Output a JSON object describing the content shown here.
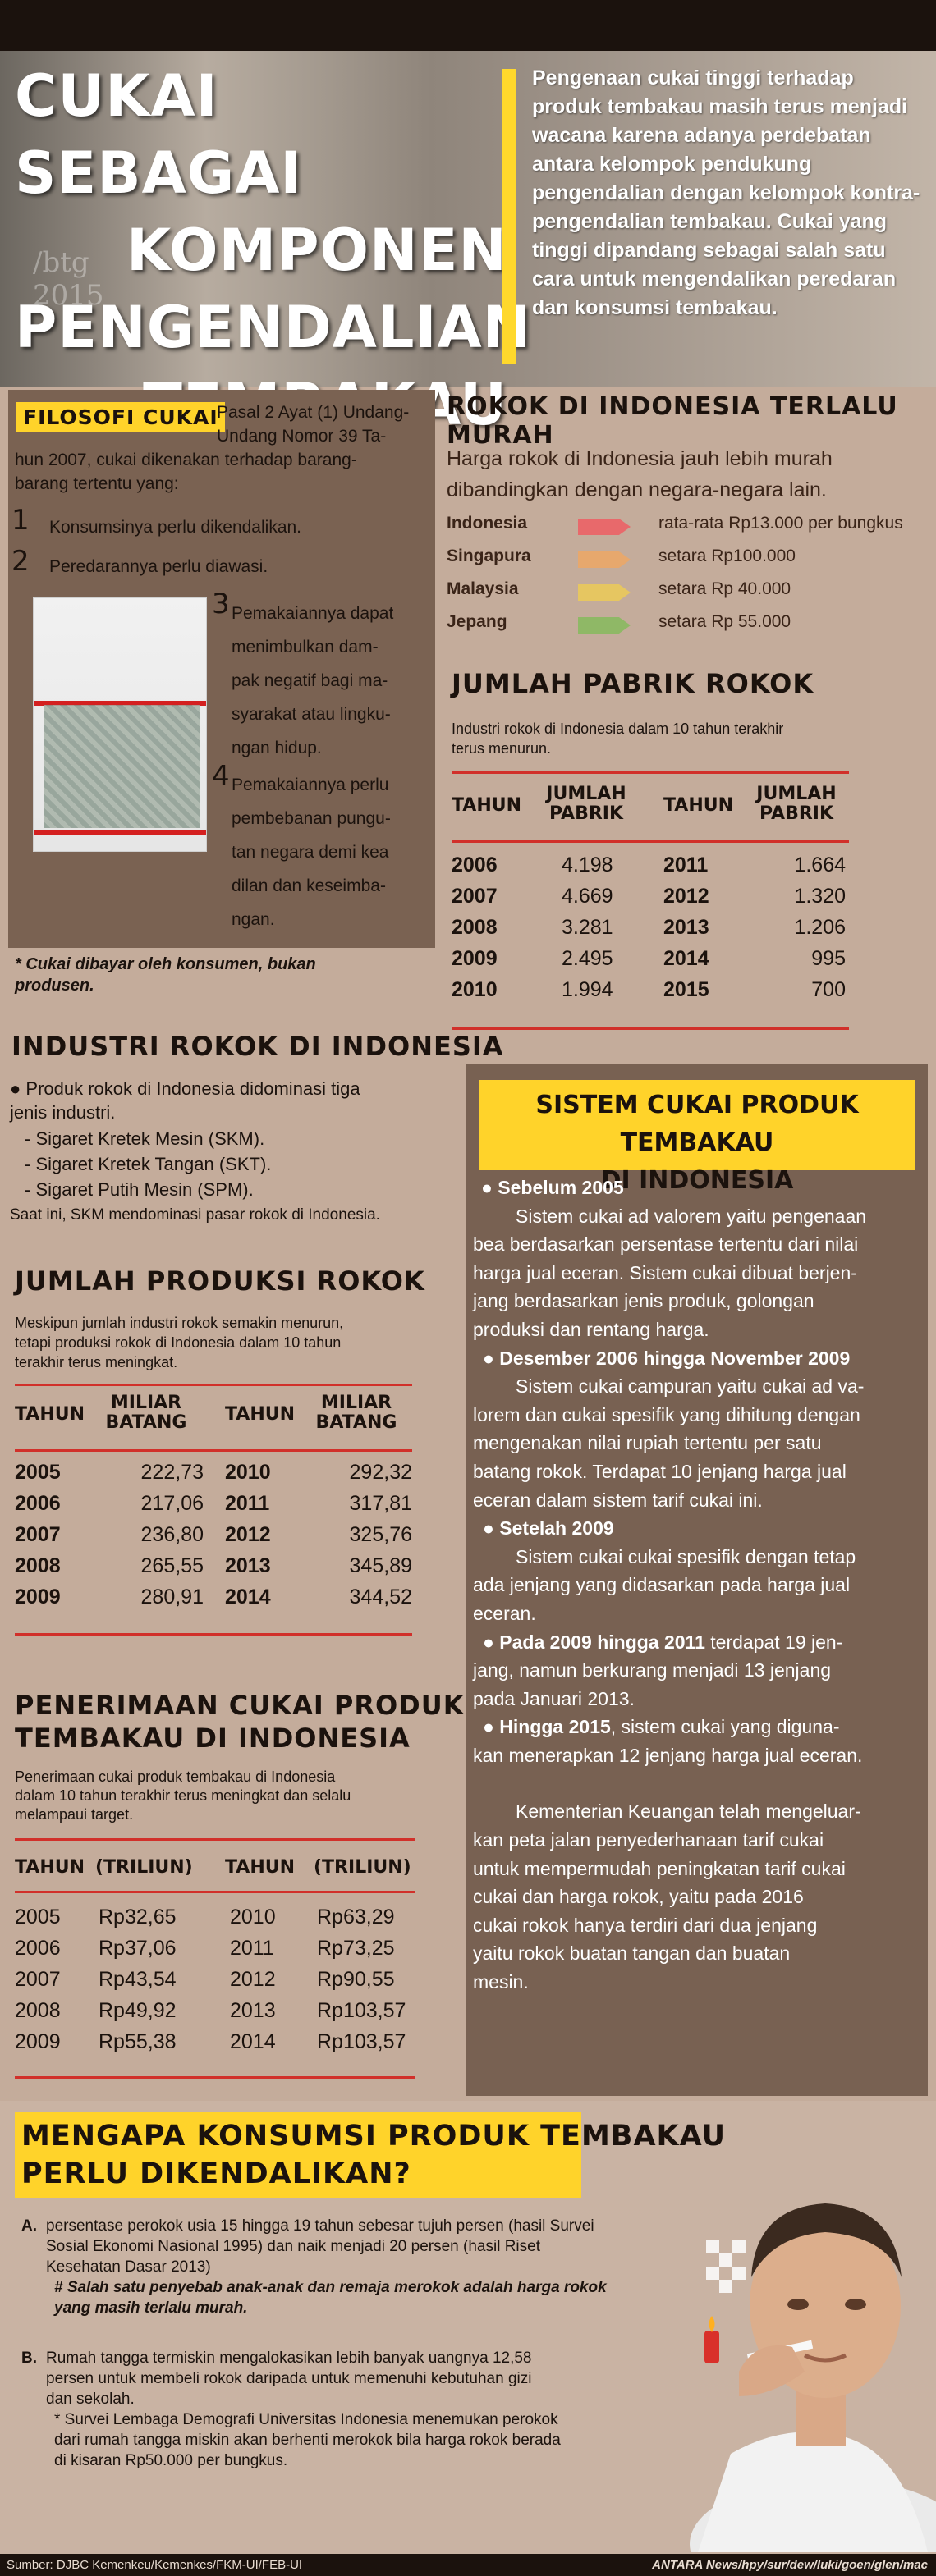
{
  "hero": {
    "title_lines": [
      "Cukai Sebagai",
      "Komponen",
      "Pengendalian",
      "Tembakau"
    ],
    "intro": "Pengenaan cukai tinggi terhadap produk tembakau masih terus menjadi wacana karena adanya perdebatan antara kelompok pendukung pengendalian dengan kelompok kontra-pengendalian tembakau. Cukai yang tinggi dipandang sebagai salah satu cara untuk mengendalikan peredaran dan konsumsi tembakau.",
    "photo_text": "/btg  2015"
  },
  "filosofi": {
    "tag": "FILOSOFI CUKAI",
    "intro_right_lines": [
      "Pasal 2 Ayat (1) Undang-",
      "Undang Nomor 39 Ta-"
    ],
    "intro_full_lines": [
      "hun 2007, cukai dikenakan terhadap barang-",
      "barang tertentu yang:"
    ],
    "items": [
      {
        "num": "1",
        "text": "Konsumsinya perlu dikendalikan."
      },
      {
        "num": "2",
        "text": "Peredarannya perlu diawasi."
      },
      {
        "num": "3",
        "lines": [
          "Pemakaiannya dapat",
          "menimbulkan dam-",
          "pak negatif bagi ma-",
          "syarakat atau lingku-",
          "ngan hidup."
        ]
      },
      {
        "num": "4",
        "lines": [
          "Pemakaiannya perlu",
          "pembebanan pungu-",
          "tan negara demi kea",
          "dilan dan keseimba-",
          "ngan."
        ]
      }
    ],
    "note_lines": [
      "*   Cukai dibayar oleh konsumen, bukan",
      "     produsen."
    ]
  },
  "rokok_murah": {
    "title": "ROKOK DI INDONESIA TERLALU MURAH",
    "desc_lines": [
      "Harga rokok di Indonesia jauh lebih murah",
      "dibandingkan dengan negara-negara lain."
    ],
    "rows": [
      {
        "country": "Indonesia",
        "color": "#e8696b",
        "text": "rata-rata Rp13.000 per bungkus"
      },
      {
        "country": "Singapura",
        "color": "#e7a86d",
        "text": "setara Rp100.000"
      },
      {
        "country": "Malaysia",
        "color": "#e6c661",
        "text": "setara Rp 40.000"
      },
      {
        "country": "Jepang",
        "color": "#8fb866",
        "text": "setara Rp 55.000"
      }
    ]
  },
  "pabrik": {
    "title": "JUMLAH PABRIK ROKOK",
    "desc_lines": [
      "Industri rokok di Indonesia dalam 10 tahun terakhir",
      "terus menurun."
    ],
    "h_tahun": "TAHUN",
    "h_val1": "JUMLAH",
    "h_val2": "PABRIK",
    "left": [
      [
        "2006",
        "4.198"
      ],
      [
        "2007",
        "4.669"
      ],
      [
        "2008",
        "3.281"
      ],
      [
        "2009",
        "2.495"
      ],
      [
        "2010",
        "1.994"
      ]
    ],
    "right": [
      [
        "2011",
        "1.664"
      ],
      [
        "2012",
        "1.320"
      ],
      [
        "2013",
        "1.206"
      ],
      [
        "2014",
        "995"
      ],
      [
        "2015",
        "700"
      ]
    ]
  },
  "industri": {
    "title": "INDUSTRI ROKOK DI INDONESIA",
    "bullet_lines": [
      "● Produk rokok di Indonesia didominasi tiga",
      "jenis industri."
    ],
    "items": [
      "- Sigaret Kretek Mesin (SKM).",
      "- Sigaret Kretek Tangan (SKT).",
      "- Sigaret Putih Mesin (SPM)."
    ],
    "note": "Saat ini, SKM mendominasi pasar rokok di Indonesia."
  },
  "produksi": {
    "title": "JUMLAH  PRODUKSI ROKOK",
    "desc_lines": [
      "Meskipun jumlah industri rokok semakin menurun,",
      "tetapi produksi rokok di Indonesia dalam 10 tahun",
      "terakhir terus meningkat."
    ],
    "h_tahun": "TAHUN",
    "h_val1": "MILIAR",
    "h_val2": "BATANG",
    "left": [
      [
        "2005",
        "222,73"
      ],
      [
        "2006",
        "217,06"
      ],
      [
        "2007",
        "236,80"
      ],
      [
        "2008",
        "265,55"
      ],
      [
        "2009",
        "280,91"
      ]
    ],
    "right": [
      [
        "2010",
        "292,32"
      ],
      [
        "2011",
        "317,81"
      ],
      [
        "2012",
        "325,76"
      ],
      [
        "2013",
        "345,89"
      ],
      [
        "2014",
        "344,52"
      ]
    ]
  },
  "penerimaan": {
    "title_lines": [
      "PENERIMAAN CUKAI PRODUK",
      "TEMBAKAU DI INDONESIA"
    ],
    "desc_lines": [
      "Penerimaan cukai produk tembakau di Indonesia",
      "dalam 10 tahun terakhir terus meningkat dan selalu",
      "melampaui target."
    ],
    "h_tahun": "TAHUN",
    "h_val": "(TRILIUN)",
    "left": [
      [
        "2005",
        "Rp32,65"
      ],
      [
        "2006",
        "Rp37,06"
      ],
      [
        "2007",
        "Rp43,54"
      ],
      [
        "2008",
        "Rp49,92"
      ],
      [
        "2009",
        "Rp55,38"
      ]
    ],
    "right": [
      [
        "2010",
        "Rp63,29"
      ],
      [
        "2011",
        "Rp73,25"
      ],
      [
        "2012",
        "Rp90,55"
      ],
      [
        "2013",
        "Rp103,57"
      ],
      [
        "2014",
        "Rp103,57"
      ]
    ]
  },
  "sistem": {
    "title_lines": [
      "SISTEM CUKAI PRODUK TEMBAKAU",
      "DI INDONESIA"
    ],
    "blocks": [
      {
        "head": "●  Sebelum 2005",
        "lines": [
          "Sistem cukai ad valorem yaitu pengenaan",
          "bea berdasarkan persentase tertentu dari nilai",
          "harga jual eceran. Sistem cukai dibuat berjen-",
          "jang berdasarkan jenis produk, golongan",
          "produksi dan rentang harga."
        ]
      },
      {
        "head": "●  Desember 2006 hingga November 2009",
        "lines": [
          "Sistem cukai campuran yaitu cukai ad va-",
          "lorem dan cukai spesifik yang dihitung dengan",
          "mengenakan nilai rupiah tertentu per satu",
          "batang rokok. Terdapat 10 jenjang harga jual",
          "eceran dalam sistem tarif cukai ini."
        ]
      },
      {
        "head": "●  Setelah 2009",
        "lines": [
          "Sistem cukai cukai spesifik dengan tetap",
          "ada jenjang yang didasarkan pada harga jual",
          "eceran."
        ]
      }
    ],
    "b4_head": "● Pada 2009 hingga 2011",
    "b4_line1_rest": " terdapat 19 jen-",
    "b4_lines": [
      "jang, namun berkurang menjadi 13 jenjang",
      "pada Januari 2013."
    ],
    "b5_head": "●  Hingga 2015",
    "b5_line1_rest": ", sistem cukai yang diguna-",
    "b5_lines": [
      "kan menerapkan 12 jenjang harga jual eceran."
    ],
    "closing_lines": [
      "Kementerian Keuangan telah mengeluar-",
      "kan peta jalan penyederhanaan tarif cukai",
      "untuk mempermudah peningkatan tarif cukai",
      "cukai dan harga rokok, yaitu pada 2016",
      "cukai rokok hanya terdiri dari dua jenjang",
      "yaitu rokok buatan tangan dan buatan",
      "mesin."
    ]
  },
  "mengapa": {
    "title_lines": [
      "MENGAPA KONSUMSI PRODUK TEMBAKAU",
      "PERLU DIKENDALIKAN?"
    ],
    "a_label": "A.",
    "a_lines": [
      "persentase perokok usia 15 hingga 19 tahun sebesar tujuh persen (hasil Survei",
      "Sosial Ekonomi Nasional 1995) dan naik menjadi 20 persen (hasil Riset",
      "Kesehatan Dasar 2013)"
    ],
    "a_note_lines": [
      "# Salah satu penyebab anak-anak dan remaja merokok adalah harga rokok",
      "   yang masih terlalu murah."
    ],
    "b_label": "B.",
    "b_lines": [
      "Rumah tangga termiskin mengalokasikan lebih banyak uangnya 12,58",
      "persen untuk membeli rokok daripada untuk memenuhi kebutuhan gizi",
      "dan sekolah."
    ],
    "b_note_lines": [
      "* Survei Lembaga Demografi Universitas Indonesia menemukan perokok",
      "  dari rumah tangga miskin akan berhenti merokok bila harga rokok berada",
      "  di kisaran Rp50.000 per bungkus."
    ]
  },
  "footer": {
    "source": "Sumber: DJBC Kemenkeu/Kemenkes/FKM-UI/FEB-UI",
    "credit": "ANTARA News/hpy/sur/dew/luki/goen/glen/mac"
  },
  "colors": {
    "accent": "#ffd32a",
    "table_rule": "#d1302a",
    "panel": "#7a6252"
  }
}
